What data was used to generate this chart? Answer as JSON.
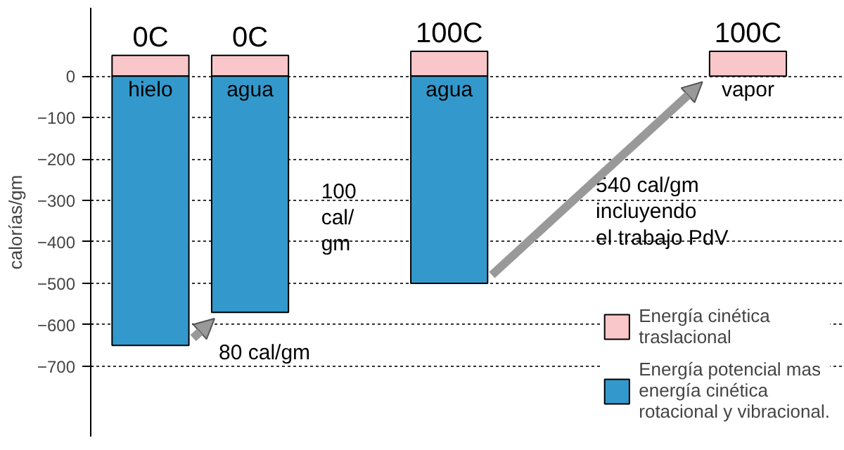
{
  "chart_data": {
    "type": "bar",
    "ylabel": "calorías/gm",
    "categories": [
      "hielo",
      "agua",
      null,
      "agua",
      null,
      null,
      "vapor"
    ],
    "stacked": true,
    "series": [
      {
        "name": "Energía cinética\ntraslacional",
        "color": "#f9c6c9",
        "values": [
          50,
          50,
          null,
          60,
          null,
          null,
          60
        ]
      },
      {
        "name": "Energía potencial mas\nenergía cinética\nrotacional y vibracional.",
        "color": "#3399cc",
        "values": [
          -650,
          -570,
          null,
          -500,
          null,
          null,
          null
        ]
      }
    ],
    "ylim": [
      -870,
      165
    ],
    "yticks": [
      0,
      -100,
      -200,
      -300,
      -400,
      -500,
      -600,
      -700
    ],
    "annotations": [
      "0C",
      "0C",
      "100C",
      "100C",
      "80 cal/gm",
      "100\ncal/\ngm",
      "540 cal/gm\nincluyendo\nel trabajo PdV"
    ],
    "grid": "y",
    "legend": "bottom right"
  }
}
